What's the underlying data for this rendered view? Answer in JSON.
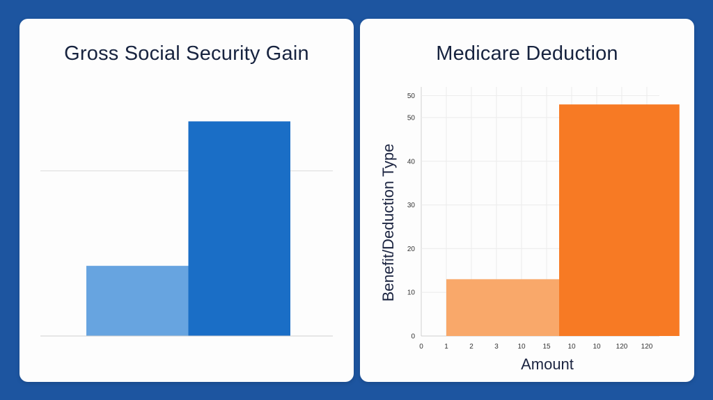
{
  "chart_data": [
    {
      "type": "bar",
      "title": "Gross Social Security Gain",
      "xlabel": "",
      "ylabel": "",
      "grid": true,
      "ylim": [
        0,
        60
      ],
      "bars": [
        {
          "x_start": 0,
          "x_end": 1,
          "value": 17,
          "color": "#67a4e0"
        },
        {
          "x_start": 1,
          "x_end": 2,
          "value": 52,
          "color": "#1a6ec6"
        }
      ]
    },
    {
      "type": "bar",
      "title": "Medicare Deduction",
      "xlabel": "Amount",
      "ylabel": "Benefit/Deduction Type",
      "grid": true,
      "ylim": [
        0,
        57
      ],
      "yticks": [
        "0",
        "10",
        "20",
        "30",
        "40",
        "50",
        "50"
      ],
      "xticks": [
        "0",
        "1",
        "2",
        "3",
        "10",
        "15",
        "10",
        "10",
        "120",
        "120"
      ],
      "bars": [
        {
          "x_start": 1,
          "x_end": 5.5,
          "value": 13,
          "color": "#f9a86a"
        },
        {
          "x_start": 5.5,
          "x_end": 10.3,
          "value": 53,
          "color": "#f77a24"
        }
      ]
    }
  ]
}
